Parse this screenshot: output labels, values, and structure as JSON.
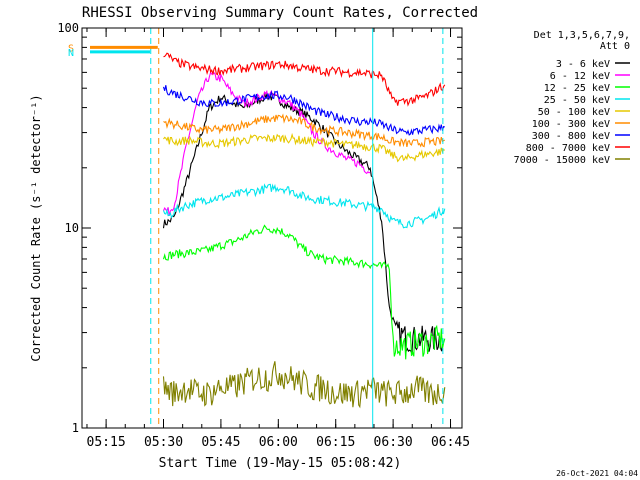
{
  "chart_data": {
    "type": "line",
    "title": "RHESSI Observing Summary Count Rates, Corrected",
    "xlabel": "Start Time (19-May-15 05:08:42)",
    "ylabel": "Corrected Count Rate (s⁻¹ detector⁻¹)",
    "xlim": [
      "05:08:42",
      "06:48:00"
    ],
    "ylim": [
      1,
      100
    ],
    "yscale": "log",
    "x_ticks": [
      "05:15",
      "05:30",
      "05:45",
      "06:00",
      "06:15",
      "06:30",
      "06:45"
    ],
    "y_ticks": [
      "1",
      "10",
      "100"
    ],
    "grid": false,
    "legend_position": "right",
    "legend_header": [
      "Det 1,3,5,6,7,9,",
      "Att 0"
    ],
    "footer": "26-Oct-2021 04:04",
    "flags": [
      {
        "label": "S",
        "color": "#ff8c00",
        "x_start": "05:08:42",
        "x_end": "05:28:30",
        "y": 80
      },
      {
        "label": "N",
        "color": "#00e5ee",
        "x_start": "05:08:42",
        "x_end": "05:26:30",
        "y": 76
      }
    ],
    "markers": [
      {
        "x": "05:26:40",
        "color": "#00e5ee",
        "style": "dashed"
      },
      {
        "x": "05:28:45",
        "color": "#ff8c00",
        "style": "dashed"
      },
      {
        "x": "06:24:40",
        "color": "#00e5ee",
        "style": "solid"
      },
      {
        "x": "06:43:00",
        "color": "#00e5ee",
        "style": "dashed"
      }
    ],
    "series": [
      {
        "name": "3 - 6 keV",
        "color": "#000000",
        "x": [
          "05:29:00",
          "05:30:00",
          "05:31:30",
          "05:33:00",
          "05:36:00",
          "05:39:00",
          "05:42:00",
          "05:45:00",
          "05:48:00",
          "05:51:00",
          "05:54:00",
          "05:57:00",
          "06:00:00",
          "06:03:00",
          "06:06:00",
          "06:09:00",
          "06:12:00",
          "06:15:00",
          "06:18:00",
          "06:21:00",
          "06:24:00",
          "06:27:00",
          "06:29:00",
          "06:31:00",
          "06:34:00",
          "06:37:00",
          "06:40:00",
          "06:43:00"
        ],
        "values": [
          null,
          10.5,
          10.8,
          11.5,
          17,
          26,
          40,
          45,
          42,
          40,
          43,
          46,
          44,
          40,
          38,
          35,
          31,
          27,
          24,
          22,
          20,
          11,
          4.0,
          3.0,
          2.8,
          2.8,
          2.8,
          2.8
        ]
      },
      {
        "name": "6 - 12 keV",
        "color": "#ff00ff",
        "x": [
          "05:29:00",
          "05:30:00",
          "05:31:30",
          "05:33:00",
          "05:36:00",
          "05:39:00",
          "05:42:00",
          "05:45:00",
          "05:48:00",
          "05:51:00",
          "05:54:00",
          "05:57:00",
          "06:00:00",
          "06:03:00",
          "06:06:00",
          "06:09:00",
          "06:12:00",
          "06:15:00",
          "06:18:00",
          "06:21:00",
          "06:24:00"
        ],
        "values": [
          null,
          12.5,
          12.0,
          13.5,
          26,
          44,
          58,
          56,
          47,
          42,
          44,
          47,
          45,
          42,
          37,
          30,
          26,
          24,
          22,
          21,
          19
        ]
      },
      {
        "name": "12 - 25 keV",
        "color": "#00ff00",
        "x": [
          "05:29:00",
          "05:30:00",
          "05:33:00",
          "05:36:00",
          "05:39:00",
          "05:42:00",
          "05:45:00",
          "05:48:00",
          "05:51:00",
          "05:54:00",
          "05:57:00",
          "06:00:00",
          "06:03:00",
          "06:06:00",
          "06:09:00",
          "06:12:00",
          "06:15:00",
          "06:18:00",
          "06:21:00",
          "06:24:00",
          "06:27:00",
          "06:29:00",
          "06:30:00",
          "06:33:00",
          "06:36:00",
          "06:39:00",
          "06:42:00",
          "06:43:30"
        ],
        "values": [
          null,
          7.2,
          7.4,
          7.5,
          7.6,
          7.8,
          8.2,
          8.5,
          9.0,
          9.6,
          10.0,
          9.8,
          9.2,
          8.0,
          7.3,
          7.0,
          6.9,
          6.8,
          6.7,
          6.6,
          6.4,
          6.5,
          2.6,
          2.6,
          2.7,
          2.7,
          2.8,
          2.8
        ]
      },
      {
        "name": "25 - 50 keV",
        "color": "#00e5ee",
        "x": [
          "05:29:00",
          "05:30:00",
          "05:31:30",
          "05:33:00",
          "05:36:00",
          "05:39:00",
          "05:42:00",
          "05:45:00",
          "05:48:00",
          "05:51:00",
          "05:54:00",
          "05:57:00",
          "06:00:00",
          "06:03:00",
          "06:06:00",
          "06:09:00",
          "06:12:00",
          "06:15:00",
          "06:18:00",
          "06:21:00",
          "06:24:00",
          "06:27:00",
          "06:30:00",
          "06:33:00",
          "06:36:00",
          "06:39:00",
          "06:42:00",
          "06:43:30"
        ],
        "values": [
          null,
          12.0,
          11.5,
          12.2,
          13.0,
          13.5,
          14.0,
          14.2,
          14.5,
          15.0,
          15.3,
          15.8,
          16.0,
          15.5,
          14.5,
          14.0,
          13.8,
          13.5,
          13.3,
          13.0,
          12.8,
          12.5,
          10.8,
          10.5,
          10.8,
          11.2,
          12.0,
          12.5
        ]
      },
      {
        "name": "50 - 100 keV",
        "color": "#e6c800",
        "x": [
          "05:29:00",
          "05:30:00",
          "05:33:00",
          "05:36:00",
          "05:39:00",
          "05:42:00",
          "05:45:00",
          "05:48:00",
          "05:51:00",
          "05:54:00",
          "05:57:00",
          "06:00:00",
          "06:03:00",
          "06:06:00",
          "06:09:00",
          "06:12:00",
          "06:15:00",
          "06:18:00",
          "06:21:00",
          "06:24:00",
          "06:27:00",
          "06:30:00",
          "06:33:00",
          "06:36:00",
          "06:39:00",
          "06:42:00",
          "06:43:30"
        ],
        "values": [
          null,
          28,
          27,
          27.5,
          27,
          26.5,
          26.5,
          27,
          27.5,
          28,
          28,
          28.2,
          28,
          27.5,
          27,
          27,
          26.5,
          26,
          26,
          25.5,
          25,
          23,
          22,
          23,
          23.5,
          24,
          24.5
        ]
      },
      {
        "name": "100 - 300 keV",
        "color": "#ff8c00",
        "x": [
          "05:29:00",
          "05:30:00",
          "05:33:00",
          "05:36:00",
          "05:39:00",
          "05:42:00",
          "05:45:00",
          "05:48:00",
          "05:51:00",
          "05:54:00",
          "05:57:00",
          "06:00:00",
          "06:03:00",
          "06:06:00",
          "06:09:00",
          "06:12:00",
          "06:15:00",
          "06:18:00",
          "06:21:00",
          "06:24:00",
          "06:27:00",
          "06:30:00",
          "06:33:00",
          "06:36:00",
          "06:39:00",
          "06:42:00",
          "06:43:30"
        ],
        "values": [
          null,
          34,
          33,
          32,
          31,
          31,
          31,
          32,
          33,
          34,
          35,
          35.5,
          35,
          34,
          32,
          31,
          30.5,
          30,
          29.5,
          29,
          28.5,
          27,
          26.5,
          26.5,
          27,
          27,
          27.5
        ]
      },
      {
        "name": "300 - 800 keV",
        "color": "#0000ff",
        "x": [
          "05:29:00",
          "05:30:00",
          "05:33:00",
          "05:36:00",
          "05:39:00",
          "05:42:00",
          "05:45:00",
          "05:48:00",
          "05:51:00",
          "05:54:00",
          "05:57:00",
          "06:00:00",
          "06:03:00",
          "06:06:00",
          "06:09:00",
          "06:12:00",
          "06:15:00",
          "06:18:00",
          "06:21:00",
          "06:24:00",
          "06:27:00",
          "06:30:00",
          "06:33:00",
          "06:36:00",
          "06:39:00",
          "06:42:00",
          "06:43:30"
        ],
        "values": [
          null,
          50,
          47,
          45,
          43,
          42,
          42,
          43,
          44,
          45,
          46,
          46,
          45,
          42,
          39,
          37,
          36,
          35,
          34,
          34,
          33,
          31,
          30,
          30.5,
          31,
          31.5,
          32
        ]
      },
      {
        "name": "800 - 7000 keV",
        "color": "#ff0000",
        "x": [
          "05:29:00",
          "05:30:00",
          "05:33:00",
          "05:36:00",
          "05:39:00",
          "05:42:00",
          "05:45:00",
          "05:48:00",
          "05:51:00",
          "05:54:00",
          "05:57:00",
          "06:00:00",
          "06:03:00",
          "06:06:00",
          "06:09:00",
          "06:12:00",
          "06:15:00",
          "06:18:00",
          "06:21:00",
          "06:24:00",
          "06:27:00",
          "06:30:00",
          "06:33:00",
          "06:36:00",
          "06:39:00",
          "06:42:00",
          "06:43:30"
        ],
        "values": [
          null,
          75,
          68,
          65,
          63,
          62,
          61,
          62,
          63,
          64,
          65,
          66,
          65,
          63,
          62,
          61,
          61,
          60,
          60,
          59,
          58,
          43,
          43,
          44,
          46,
          50,
          52
        ]
      },
      {
        "name": "7000 - 15000 keV",
        "color": "#808000",
        "x": [
          "05:29:00",
          "05:30:00",
          "05:33:00",
          "05:36:00",
          "05:39:00",
          "05:42:00",
          "05:45:00",
          "05:48:00",
          "05:51:00",
          "05:54:00",
          "05:57:00",
          "06:00:00",
          "06:03:00",
          "06:06:00",
          "06:09:00",
          "06:12:00",
          "06:15:00",
          "06:18:00",
          "06:21:00",
          "06:24:00",
          "06:27:00",
          "06:30:00",
          "06:33:00",
          "06:36:00",
          "06:39:00",
          "06:42:00",
          "06:43:30"
        ],
        "values": [
          null,
          1.6,
          1.5,
          1.6,
          1.5,
          1.5,
          1.6,
          1.6,
          1.7,
          1.8,
          1.8,
          1.9,
          1.8,
          1.7,
          1.6,
          1.6,
          1.5,
          1.5,
          1.5,
          1.6,
          1.5,
          1.5,
          1.5,
          1.6,
          1.5,
          1.5,
          1.6
        ]
      }
    ]
  }
}
